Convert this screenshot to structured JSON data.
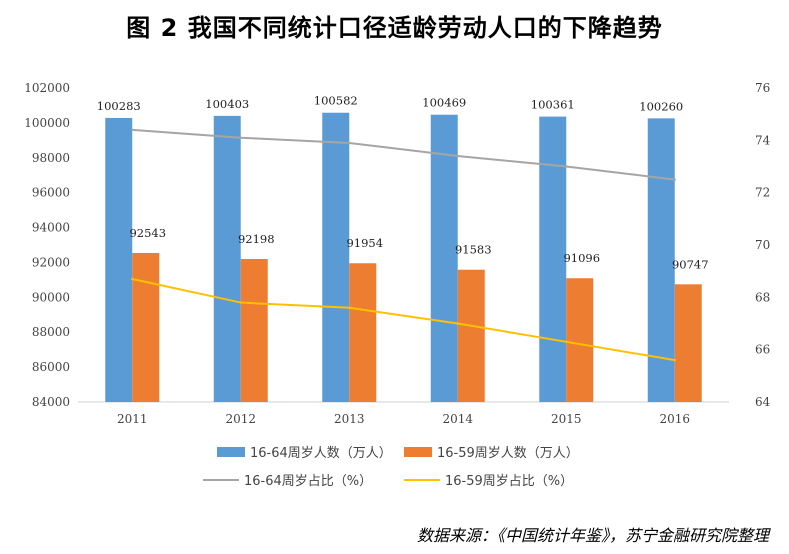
{
  "title": "图 2  我国不同统计口径适龄劳动人口的下降趋势",
  "source": "数据来源：《中国统计年鉴》，苏宁金融研究院整理",
  "colors": {
    "series_16_64": "#5B9BD5",
    "series_16_59": "#ED7D31",
    "ratio_16_64": "#A5A5A5",
    "ratio_16_59": "#FFC000"
  },
  "chart_data": {
    "type": "bar",
    "title": "图 2  我国不同统计口径适龄劳动人口的下降趋势",
    "categories": [
      "2011",
      "2012",
      "2013",
      "2014",
      "2015",
      "2016"
    ],
    "series": [
      {
        "name": "16-64周岁人数（万人）",
        "type": "bar",
        "axis": "left",
        "values": [
          100283,
          100403,
          100582,
          100469,
          100361,
          100260
        ]
      },
      {
        "name": "16-59周岁人数（万人）",
        "type": "bar",
        "axis": "left",
        "values": [
          92543,
          92198,
          91954,
          91583,
          91096,
          90747
        ]
      },
      {
        "name": "16-64周岁占比（%）",
        "type": "line",
        "axis": "right",
        "values": [
          74.4,
          74.1,
          73.9,
          73.4,
          73.0,
          72.5
        ]
      },
      {
        "name": "16-59周岁占比（%）",
        "type": "line",
        "axis": "right",
        "values": [
          68.7,
          67.8,
          67.6,
          67.0,
          66.3,
          65.6
        ]
      }
    ],
    "y_left": {
      "min": 84000,
      "max": 102000,
      "step": 2000,
      "ticks": [
        "84000",
        "86000",
        "88000",
        "90000",
        "92000",
        "94000",
        "96000",
        "98000",
        "100000",
        "102000"
      ]
    },
    "y_right": {
      "min": 64,
      "max": 76,
      "step": 2,
      "ticks": [
        "64",
        "66",
        "68",
        "70",
        "72",
        "74",
        "76"
      ]
    },
    "grid": false,
    "legend": "bottom"
  }
}
